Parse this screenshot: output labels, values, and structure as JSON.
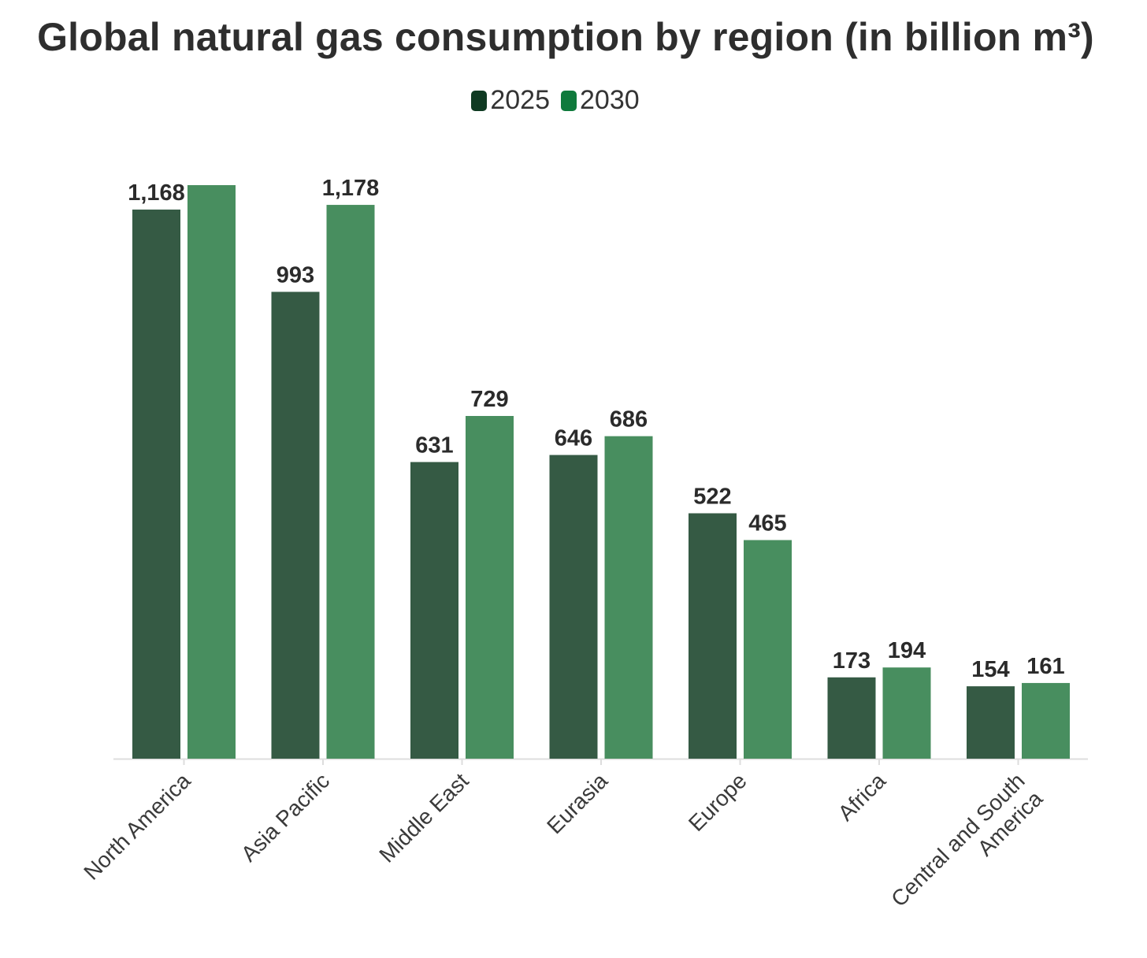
{
  "chart_data": {
    "type": "bar",
    "title": "Global natural gas consumption by region (in billion m³)",
    "xlabel": "",
    "ylabel": "",
    "categories": [
      [
        "North America"
      ],
      [
        "Asia Pacific"
      ],
      [
        "Middle East"
      ],
      [
        "Eurasia"
      ],
      [
        "Europe"
      ],
      [
        "Africa"
      ],
      [
        "Central and South",
        "America"
      ]
    ],
    "series": [
      {
        "name": "2025",
        "color": "#355a44",
        "legend_color": "#0f3a22",
        "values": [
          1168,
          993,
          631,
          646,
          522,
          173,
          154
        ],
        "labels": [
          "1,168",
          "993",
          "631",
          "646",
          "522",
          "173",
          "154"
        ]
      },
      {
        "name": "2030",
        "color": "#488e5f",
        "legend_color": "#0f7a3c",
        "values": [
          1220,
          1178,
          729,
          686,
          465,
          194,
          161
        ],
        "labels": [
          "",
          "1,178",
          "729",
          "686",
          "465",
          "194",
          "161"
        ]
      }
    ],
    "ylim": [
      0,
      1220
    ],
    "grid": false,
    "legend_position": "top-center"
  }
}
